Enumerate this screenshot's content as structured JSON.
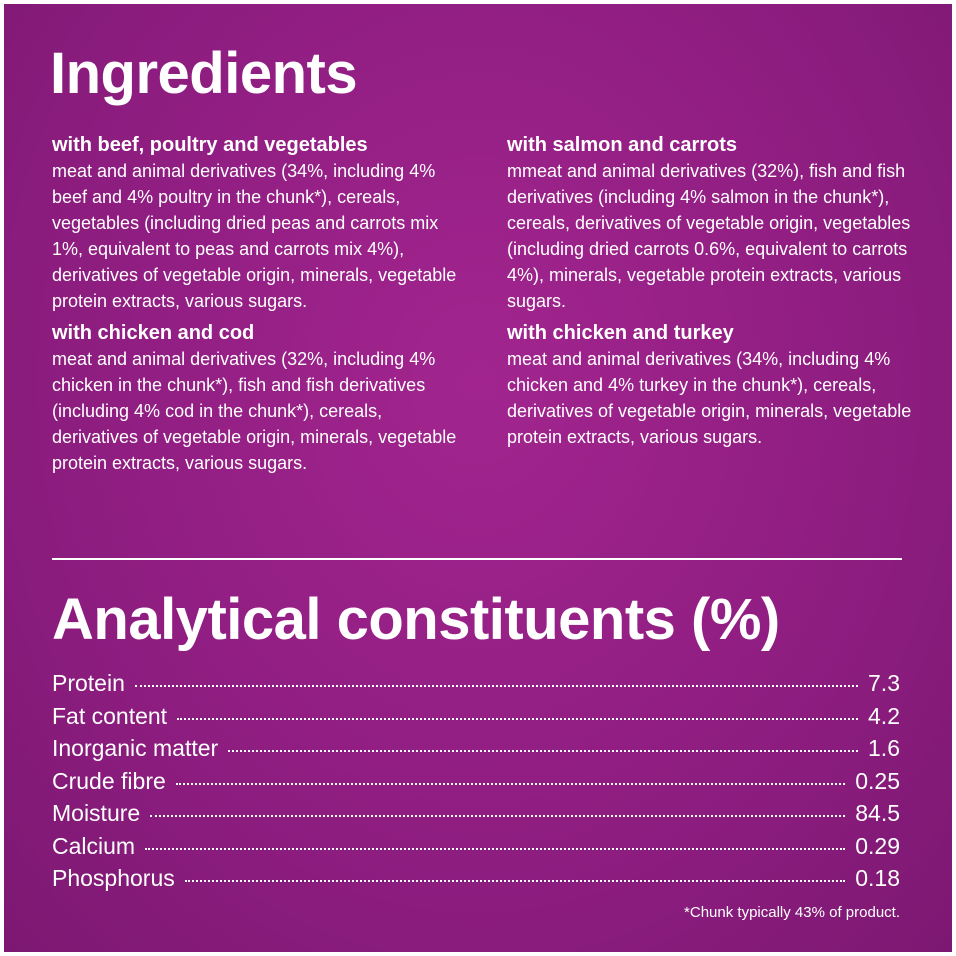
{
  "ingredients": {
    "title": "Ingredients",
    "sections": [
      {
        "heading": "with beef, poultry and vegetables",
        "text": "meat and animal derivatives (34%, including 4% beef and 4% poultry in the chunk*), cereals, vegetables (including dried peas and carrots mix 1%, equivalent to peas and carrots mix 4%), derivatives of vegetable origin, minerals, vegetable protein extracts, various sugars."
      },
      {
        "heading": "with chicken and cod",
        "text": "meat and animal derivatives (32%, including 4% chicken in the chunk*), fish and fish derivatives (including 4% cod in the chunk*), cereals, derivatives of vegetable origin, minerals, vegetable protein extracts, various sugars."
      },
      {
        "heading": "with salmon and carrots",
        "text": "mmeat and animal derivatives (32%), fish and fish derivatives (including 4% salmon in the chunk*), cereals, derivatives of vegetable origin, vegetables (including dried carrots 0.6%, equivalent to carrots 4%), minerals, vegetable protein extracts, various sugars."
      },
      {
        "heading": "with chicken and turkey",
        "text": "meat and animal derivatives (34%, including 4% chicken and 4% turkey in the chunk*), cereals, derivatives of vegetable origin, minerals, vegetable protein extracts, various sugars."
      }
    ]
  },
  "analytical": {
    "title": "Analytical constituents (%)",
    "rows": [
      [
        "Protein",
        "7.3"
      ],
      [
        "Fat content",
        "4.2"
      ],
      [
        "Inorganic matter",
        "1.6"
      ],
      [
        "Crude fibre",
        "0.25"
      ],
      [
        "Moisture",
        "84.5"
      ],
      [
        "Calcium",
        "0.29"
      ],
      [
        "Phosphorus",
        "0.18"
      ]
    ],
    "footnote": "*Chunk typically 43% of product."
  }
}
